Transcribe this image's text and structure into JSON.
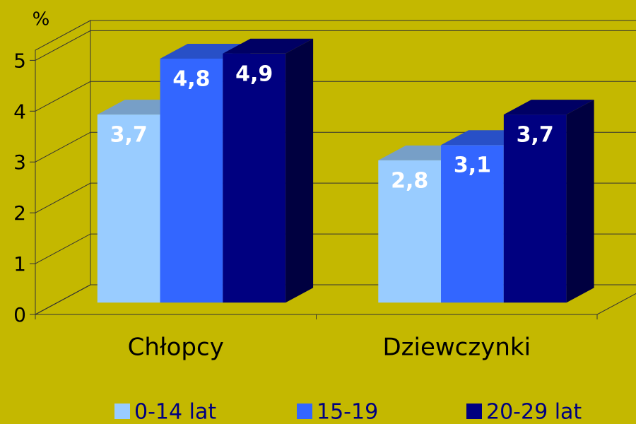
{
  "chart_data": {
    "type": "bar3d",
    "y_label": "%",
    "categories": [
      "Chłopcy",
      "Dziewczynki"
    ],
    "series": [
      {
        "name": "0-14 lat",
        "color": "#99ccff",
        "values": [
          3.7,
          2.8
        ],
        "value_labels": [
          "3,7",
          "2,8"
        ]
      },
      {
        "name": "15-19",
        "color": "#3366ff",
        "values": [
          4.8,
          3.1
        ],
        "value_labels": [
          "4,8",
          "3,1"
        ]
      },
      {
        "name": "20-29 lat",
        "color": "#000080",
        "values": [
          4.9,
          3.7
        ],
        "value_labels": [
          "4,9",
          "3,7"
        ]
      }
    ],
    "ylim": [
      0,
      5.2
    ],
    "yticks": [
      0,
      1,
      2,
      3,
      4,
      5
    ],
    "grid": true
  }
}
